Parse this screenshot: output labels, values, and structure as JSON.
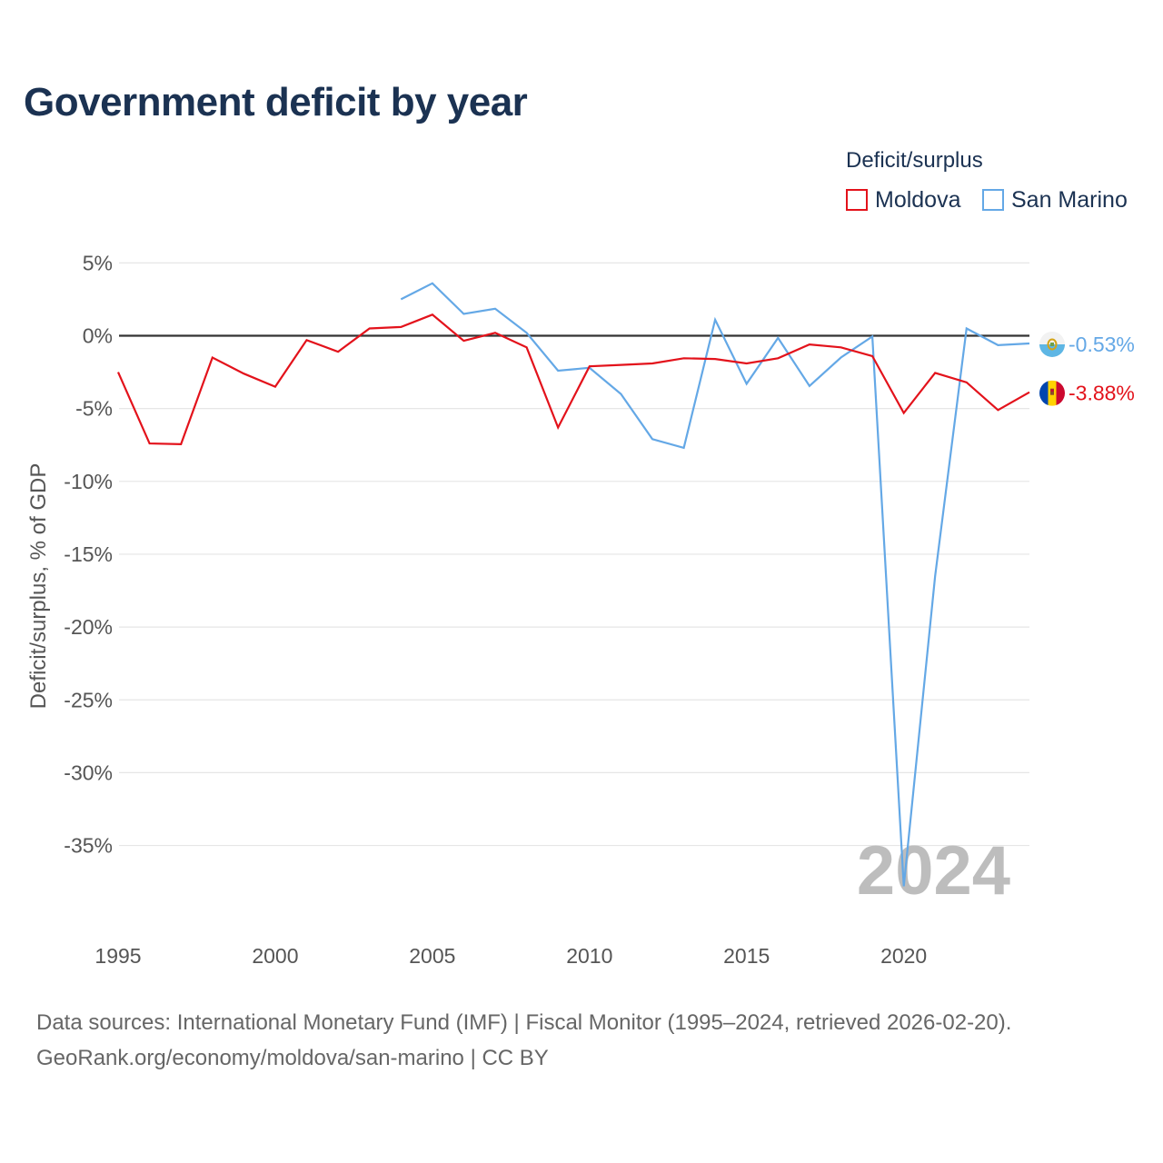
{
  "chart_data": {
    "type": "line",
    "title": "Government deficit by year",
    "legend_title": "Deficit/surplus",
    "legend_position": "top-right",
    "ylabel": "Deficit/surplus, % of GDP",
    "xlabel": "",
    "xlim": [
      1995,
      2024
    ],
    "ylim": [
      -40,
      5
    ],
    "x_ticks": [
      1995,
      2000,
      2005,
      2010,
      2015,
      2020
    ],
    "x_tick_labels": [
      "1995",
      "2000",
      "2005",
      "2010",
      "2015",
      "2020"
    ],
    "y_ticks": [
      5,
      0,
      -5,
      -10,
      -15,
      -20,
      -25,
      -30,
      -35
    ],
    "y_tick_labels": [
      "5%",
      "0%",
      "-5%",
      "-10%",
      "-15%",
      "-20%",
      "-25%",
      "-30%",
      "-35%"
    ],
    "current_year": "2024",
    "series": [
      {
        "name": "Moldova",
        "color": "#e3121b",
        "end_label": "-3.88%",
        "flag": "moldova-flag",
        "x": [
          1995,
          1996,
          1997,
          1998,
          1999,
          2000,
          2001,
          2002,
          2003,
          2004,
          2005,
          2006,
          2007,
          2008,
          2009,
          2010,
          2011,
          2012,
          2013,
          2014,
          2015,
          2016,
          2017,
          2018,
          2019,
          2020,
          2021,
          2022,
          2023,
          2024
        ],
        "values": [
          -2.5,
          -7.4,
          -7.45,
          -1.5,
          -2.6,
          -3.5,
          -0.3,
          -1.1,
          0.5,
          0.6,
          1.45,
          -0.35,
          0.2,
          -0.8,
          -6.3,
          -2.1,
          -2.0,
          -1.9,
          -1.55,
          -1.6,
          -1.9,
          -1.55,
          -0.6,
          -0.8,
          -1.4,
          -5.3,
          -2.55,
          -3.2,
          -5.1,
          -3.88
        ]
      },
      {
        "name": "San Marino",
        "color": "#64a8e6",
        "end_label": "-0.53%",
        "flag": "san-marino-flag",
        "x": [
          2004,
          2005,
          2006,
          2007,
          2008,
          2009,
          2010,
          2011,
          2012,
          2013,
          2014,
          2015,
          2016,
          2017,
          2018,
          2019,
          2020,
          2021,
          2022,
          2023,
          2024
        ],
        "values": [
          2.5,
          3.6,
          1.5,
          1.85,
          0.2,
          -2.4,
          -2.2,
          -4.0,
          -7.1,
          -7.7,
          1.1,
          -3.3,
          -0.15,
          -3.45,
          -1.5,
          -0.05,
          -37.8,
          -16.5,
          0.5,
          -0.65,
          -0.53
        ]
      }
    ]
  },
  "footer": {
    "line1": "Data sources: International Monetary Fund (IMF) | Fiscal Monitor (1995–2024, retrieved 2026-02-20).",
    "line2": "GeoRank.org/economy/moldova/san-marino | CC BY"
  }
}
